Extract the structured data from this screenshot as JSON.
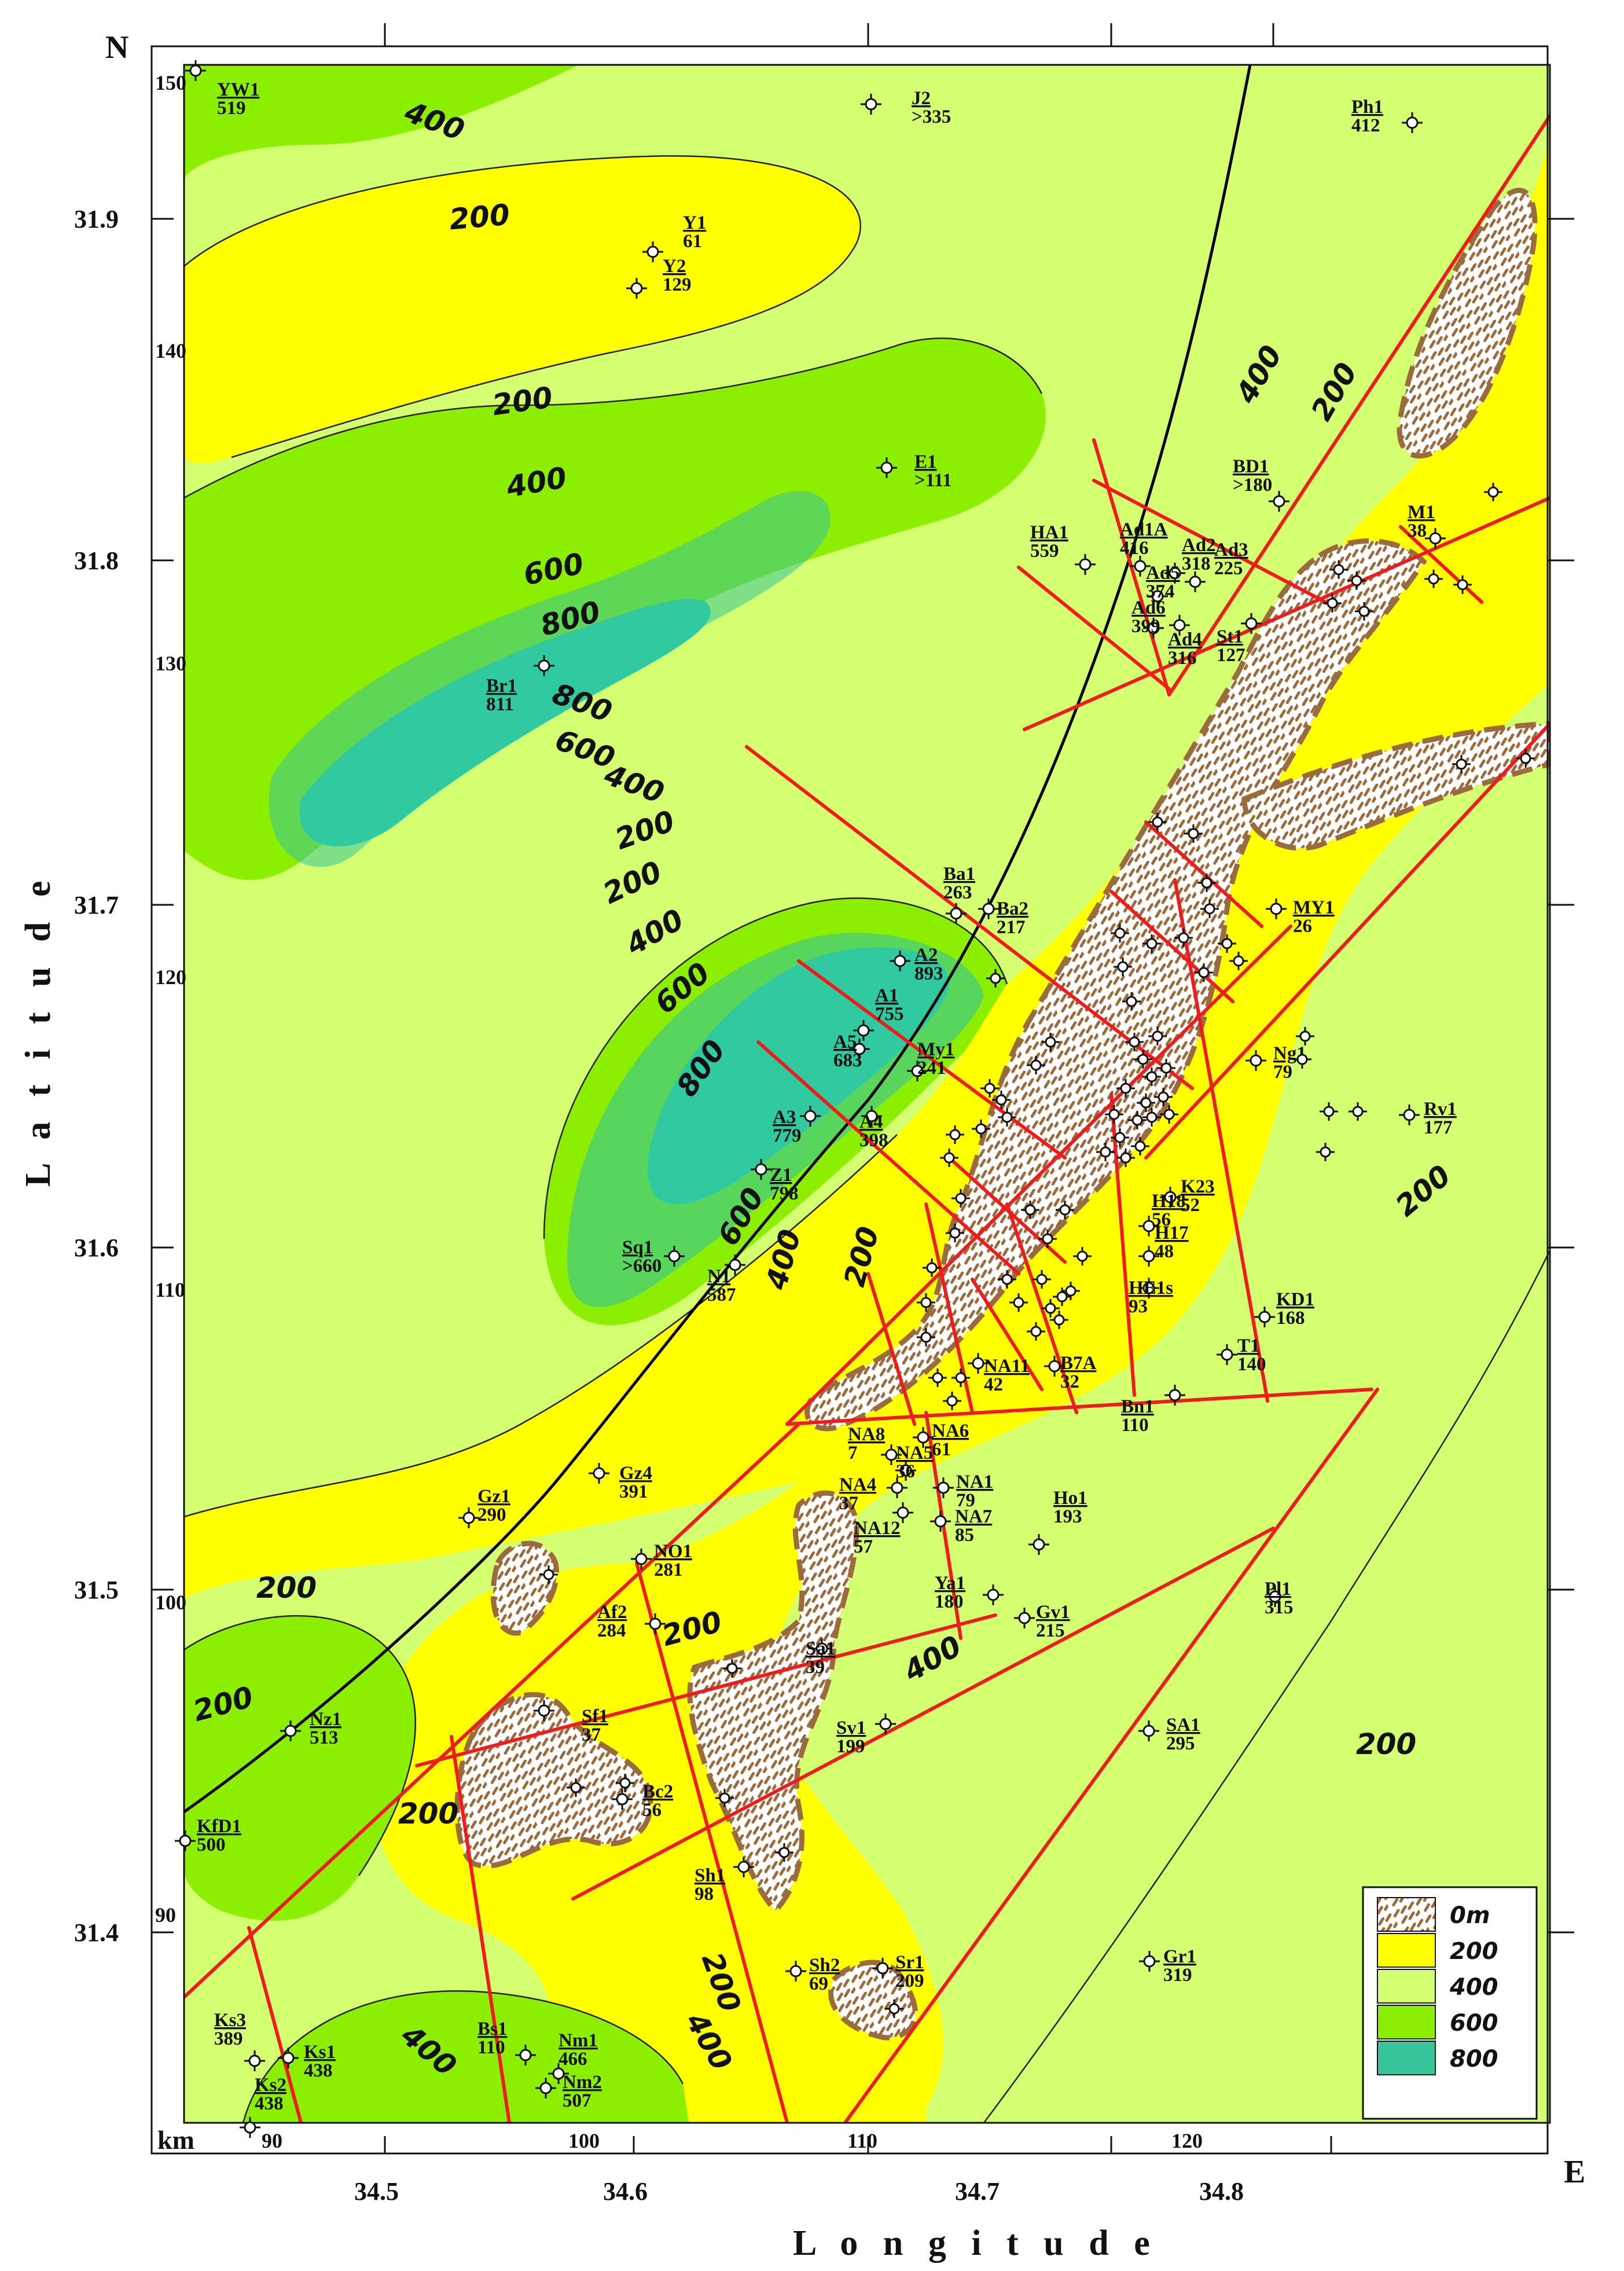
{
  "axes": {
    "x_title": "L o n g i t u d e",
    "y_title": "L a t i t u d e",
    "north": "N",
    "east": "E",
    "km": "km",
    "lon_ticks": [
      "34.5",
      "34.6",
      "34.7",
      "34.8"
    ],
    "lat_ticks": [
      "31.9",
      "31.8",
      "31.7",
      "31.6",
      "31.5",
      "31.4"
    ],
    "km_x_ticks": [
      "90",
      "100",
      "110",
      "120"
    ],
    "km_y_ticks": [
      "150",
      "140",
      "130",
      "120",
      "110",
      "100",
      "90"
    ]
  },
  "legend": {
    "items": [
      {
        "label": "0m",
        "color": "#ffffff",
        "pattern": "hatch"
      },
      {
        "label": "200",
        "color": "#ffff00"
      },
      {
        "label": "400",
        "color": "#d4ff70"
      },
      {
        "label": "600",
        "color": "#8cee00"
      },
      {
        "label": "800",
        "color": "#36c49a"
      },
      {
        "label": "",
        "color": "#30c9a0"
      }
    ]
  },
  "contour_labels": [
    "400",
    "200",
    "200",
    "400",
    "600",
    "800",
    "800",
    "600",
    "400",
    "200",
    "200",
    "400",
    "600",
    "800",
    "600",
    "400",
    "200",
    "400",
    "200",
    "200",
    "200",
    "200",
    "400",
    "200",
    "200",
    "200",
    "400",
    "400",
    "200"
  ],
  "wells": [
    {
      "name": "YW1",
      "value": "519"
    },
    {
      "name": "J2",
      "value": ">335"
    },
    {
      "name": "Ph1",
      "value": "412"
    },
    {
      "name": "Y1",
      "value": "61"
    },
    {
      "name": "Y2",
      "value": "129"
    },
    {
      "name": "E1",
      "value": ">111"
    },
    {
      "name": "BD1",
      "value": ">180"
    },
    {
      "name": "M1",
      "value": "38"
    },
    {
      "name": "HA1",
      "value": "559"
    },
    {
      "name": "Ad1A",
      "value": "416"
    },
    {
      "name": "Ad2",
      "value": "318"
    },
    {
      "name": "Ad3",
      "value": "225"
    },
    {
      "name": "Ad5",
      "value": "374"
    },
    {
      "name": "Ad6",
      "value": "399"
    },
    {
      "name": "Ad4",
      "value": "316"
    },
    {
      "name": "St1",
      "value": "127"
    },
    {
      "name": "Br1",
      "value": "811"
    },
    {
      "name": "Ba1",
      "value": "263"
    },
    {
      "name": "Ba2",
      "value": "217"
    },
    {
      "name": "MY1",
      "value": "26"
    },
    {
      "name": "A2",
      "value": "893"
    },
    {
      "name": "A1",
      "value": "755"
    },
    {
      "name": "A5",
      "value": "683"
    },
    {
      "name": "My1",
      "value": "241"
    },
    {
      "name": "Ng1",
      "value": "79"
    },
    {
      "name": "Rv1",
      "value": "177"
    },
    {
      "name": "A3",
      "value": "779"
    },
    {
      "name": "A4",
      "value": "398"
    },
    {
      "name": "Z1",
      "value": "798"
    },
    {
      "name": "K23",
      "value": "52"
    },
    {
      "name": "H18",
      "value": "56"
    },
    {
      "name": "H17",
      "value": "48"
    },
    {
      "name": "HE1s",
      "value": "93"
    },
    {
      "name": "Sq1",
      "value": ">660"
    },
    {
      "name": "N1",
      "value": "587"
    },
    {
      "name": "KD1",
      "value": "168"
    },
    {
      "name": "T1",
      "value": "140"
    },
    {
      "name": "NA11",
      "value": "42"
    },
    {
      "name": "B7A",
      "value": "32"
    },
    {
      "name": "Bn1",
      "value": "110"
    },
    {
      "name": "NA8",
      "value": "7"
    },
    {
      "name": "NA6",
      "value": "61"
    },
    {
      "name": "NA5",
      "value": "36"
    },
    {
      "name": "NA4",
      "value": "37"
    },
    {
      "name": "NA1",
      "value": "79"
    },
    {
      "name": "Gz1",
      "value": "290"
    },
    {
      "name": "Gz4",
      "value": "391"
    },
    {
      "name": "Ho1",
      "value": "193"
    },
    {
      "name": "NA12",
      "value": "57"
    },
    {
      "name": "NA7",
      "value": "85"
    },
    {
      "name": "NO1",
      "value": "281"
    },
    {
      "name": "Ya1",
      "value": "180"
    },
    {
      "name": "Pl1",
      "value": "315"
    },
    {
      "name": "Af2",
      "value": "284"
    },
    {
      "name": "Gv1",
      "value": "215"
    },
    {
      "name": "Sa1",
      "value": "39"
    },
    {
      "name": "Nz1",
      "value": "513"
    },
    {
      "name": "Sf1",
      "value": "37"
    },
    {
      "name": "Sv1",
      "value": "199"
    },
    {
      "name": "SA1",
      "value": "295"
    },
    {
      "name": "Bc2",
      "value": "56"
    },
    {
      "name": "KfD1",
      "value": "500"
    },
    {
      "name": "Sh1",
      "value": "98"
    },
    {
      "name": "Sh2",
      "value": "69"
    },
    {
      "name": "Sr1",
      "value": "209"
    },
    {
      "name": "Gr1",
      "value": "319"
    },
    {
      "name": "Ks3",
      "value": "389"
    },
    {
      "name": "Ks1",
      "value": "438"
    },
    {
      "name": "Ks2",
      "value": "438"
    },
    {
      "name": "Bs1",
      "value": "110"
    },
    {
      "name": "Nm1",
      "value": "466"
    },
    {
      "name": "Nm2",
      "value": "507"
    }
  ]
}
